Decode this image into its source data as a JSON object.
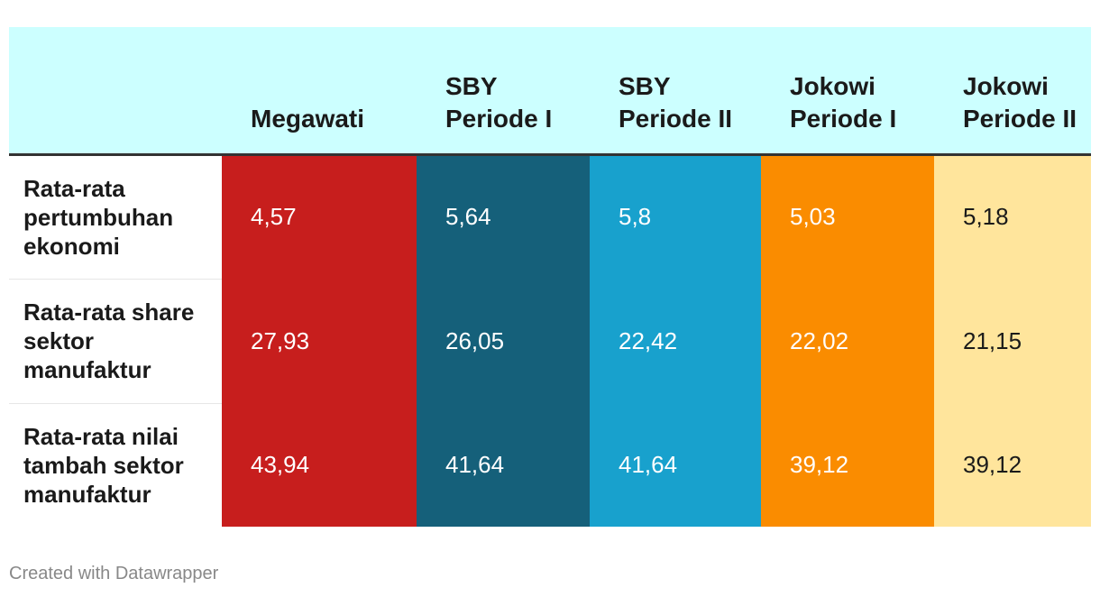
{
  "chart_data": {
    "type": "table",
    "columns": [
      "",
      "Megawati",
      "SBY Periode I",
      "SBY Periode II",
      "Jokowi Periode I",
      "Jokowi Periode II"
    ],
    "rows": [
      {
        "label": "Rata-rata pertumbuhan ekonomi",
        "values": [
          "4,57",
          "5,64",
          "5,8",
          "5,03",
          "5,18"
        ]
      },
      {
        "label": "Rata-rata share sektor manufaktur",
        "values": [
          "27,93",
          "26,05",
          "22,42",
          "22,02",
          "21,15"
        ]
      },
      {
        "label": "Rata-rata nilai tambah sektor manufaktur",
        "values": [
          "43,94",
          "41,64",
          "41,64",
          "39,12",
          "39,12"
        ]
      }
    ],
    "column_colors": [
      "#c71e1d",
      "#15607a",
      "#18a1cd",
      "#fa8c00",
      "#ffe59c"
    ],
    "header_background": "#ccffff"
  },
  "footer": {
    "credit": "Created with Datawrapper"
  }
}
